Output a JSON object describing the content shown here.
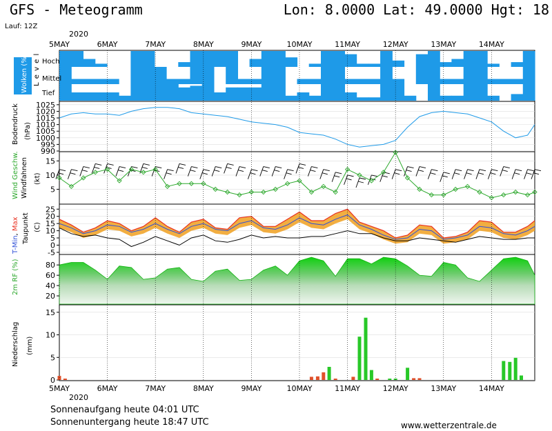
{
  "header": {
    "title": "GFS - Meteogramm",
    "coords": "Lon: 8.0000 Lat: 49.0000 Hgt: 18",
    "run": "Lauf: 12Z"
  },
  "footer": {
    "sunrise": "Sonnenaufgang heute 04:01 UTC",
    "sunset": "Sonnenuntergang heute 18:47 UTC",
    "source": "www.wetterzentrale.de"
  },
  "year": "2020",
  "days": [
    "5MAY",
    "6MAY",
    "7MAY",
    "8MAY",
    "9MAY",
    "10MAY",
    "11MAY",
    "12MAY",
    "13MAY",
    "14MAY"
  ],
  "colors": {
    "clouds": "#1e9ae8",
    "pressure": "#1e9ae8",
    "wind": "#2ca82c",
    "tmin": "#3050d8",
    "tmax": "#e83020",
    "dewpoint": "#000000",
    "humidity": "#3ec83e",
    "precip_rain": "#28c828",
    "precip_conv": "#e0502a"
  },
  "chart_data": [
    {
      "type": "heatmap",
      "id": "clouds",
      "ylabel": "Wolken (%)",
      "ylabel2": "L e v e l",
      "levels": [
        "Hoch",
        "Mittel",
        "Tief"
      ],
      "x_range": [
        0,
        9.9
      ],
      "cover": {
        "Hoch": [
          1,
          1,
          0.5,
          0.2,
          0,
          0,
          1,
          1,
          0,
          0,
          0.3,
          1,
          1,
          1,
          1,
          0,
          0.5,
          1,
          1,
          0.6,
          0,
          0.2,
          1,
          1,
          0.8,
          0.2,
          0.2,
          1,
          0.4,
          0,
          0.8,
          1,
          0.3,
          0.5,
          1,
          1,
          0.2,
          0,
          0.3,
          1
        ],
        "Mittel": [
          1,
          0.3,
          0.3,
          0.3,
          0.3,
          0,
          1,
          1,
          1,
          0.3,
          0.3,
          1,
          1,
          0,
          1,
          0.3,
          0.3,
          1,
          1,
          0,
          0.3,
          0.3,
          1,
          1,
          0.3,
          0.3,
          0.3,
          1,
          0.3,
          0,
          1,
          1,
          0.3,
          0.3,
          1,
          1,
          0.3,
          0.3,
          0.3,
          1
        ],
        "Tief": [
          1,
          0.5,
          0.5,
          0.5,
          0.5,
          0.3,
          1,
          1,
          1,
          1,
          0.8,
          0.9,
          1,
          0.5,
          0.8,
          0.8,
          0.8,
          1,
          1,
          0.3,
          0.5,
          0.3,
          1,
          1,
          0.5,
          0.2,
          0.2,
          1,
          1,
          0.3,
          0,
          1,
          0.3,
          0.3,
          1,
          1,
          0.3,
          0,
          0.4,
          1
        ]
      }
    },
    {
      "type": "line",
      "id": "pressure",
      "ylabel": "Bodendruck",
      "unit": "(hPa)",
      "ylim": [
        990,
        1027
      ],
      "yticks": [
        990,
        995,
        1000,
        1005,
        1010,
        1015,
        1020,
        1025
      ],
      "x": [
        0,
        0.25,
        0.5,
        0.75,
        1,
        1.25,
        1.5,
        1.75,
        2,
        2.25,
        2.5,
        2.75,
        3,
        3.25,
        3.5,
        3.75,
        4,
        4.25,
        4.5,
        4.75,
        5,
        5.25,
        5.5,
        5.75,
        6,
        6.25,
        6.5,
        6.75,
        7,
        7.25,
        7.5,
        7.75,
        8,
        8.25,
        8.5,
        8.75,
        9,
        9.25,
        9.5,
        9.75,
        9.9
      ],
      "values": [
        1015,
        1018,
        1019,
        1018,
        1018,
        1017,
        1020,
        1022,
        1023,
        1023,
        1022,
        1019,
        1018,
        1017,
        1016,
        1014,
        1012,
        1011,
        1010,
        1008,
        1004,
        1003,
        1002,
        999,
        995,
        993,
        994,
        995,
        998,
        1008,
        1016,
        1019,
        1020,
        1019,
        1018,
        1015,
        1012,
        1005,
        1000,
        1002,
        1010
      ],
      "series": [
        {
          "name": "Bodendruck"
        }
      ]
    },
    {
      "type": "line",
      "id": "wind",
      "ylabel": "Wind Geschw.",
      "ylabel2": "Windfahnen",
      "unit": "(kt)",
      "ylim": [
        0,
        18
      ],
      "yticks": [
        5,
        10,
        15
      ],
      "x": [
        0,
        0.25,
        0.5,
        0.75,
        1,
        1.25,
        1.5,
        1.75,
        2,
        2.25,
        2.5,
        2.75,
        3,
        3.25,
        3.5,
        3.75,
        4,
        4.25,
        4.5,
        4.75,
        5,
        5.25,
        5.5,
        5.75,
        6,
        6.25,
        6.5,
        6.75,
        7,
        7.25,
        7.5,
        7.75,
        8,
        8.25,
        8.5,
        8.75,
        9,
        9.25,
        9.5,
        9.75,
        9.9
      ],
      "values": [
        9,
        6,
        9,
        11,
        12,
        8,
        12,
        11,
        12,
        6,
        7,
        7,
        7,
        5,
        4,
        3,
        4,
        4,
        5,
        7,
        8,
        4,
        6,
        4,
        12,
        10,
        8,
        11,
        18,
        9,
        5,
        3,
        3,
        5,
        6,
        4,
        2,
        3,
        4,
        3,
        4
      ],
      "barbs": [
        12,
        12,
        13,
        14,
        14,
        13,
        13,
        14,
        13,
        12,
        14,
        13,
        12,
        13,
        14,
        13,
        12,
        13,
        13,
        12,
        14,
        13,
        12,
        11,
        10,
        9,
        10,
        11,
        12,
        13,
        13,
        12,
        11,
        12,
        12,
        12,
        12,
        13,
        12,
        12,
        12
      ],
      "series": [
        {
          "name": "Wind Geschw."
        },
        {
          "name": "Windfahnen"
        }
      ]
    },
    {
      "type": "area",
      "id": "temperature",
      "ylabel": "T-Min, Max",
      "ylabel2": "Taupunkt",
      "unit": "(C)",
      "ylim": [
        -6,
        28
      ],
      "yticks": [
        -5,
        0,
        5,
        10,
        15,
        20,
        25
      ],
      "x": [
        0,
        0.25,
        0.5,
        0.75,
        1,
        1.25,
        1.5,
        1.75,
        2,
        2.25,
        2.5,
        2.75,
        3,
        3.25,
        3.5,
        3.75,
        4,
        4.25,
        4.5,
        4.75,
        5,
        5.25,
        5.5,
        5.75,
        6,
        6.25,
        6.5,
        6.75,
        7,
        7.25,
        7.5,
        7.75,
        8,
        8.25,
        8.5,
        8.75,
        9,
        9.25,
        9.5,
        9.75,
        9.9
      ],
      "tmax": [
        18,
        14,
        9,
        12,
        17,
        15,
        10,
        13,
        19,
        13,
        9,
        16,
        18,
        12,
        11,
        19,
        20,
        13,
        13,
        18,
        23,
        17,
        17,
        22,
        25,
        16,
        13,
        10,
        5,
        7,
        14,
        13,
        5,
        6,
        9,
        17,
        16,
        9,
        9,
        13,
        17
      ],
      "tmin": [
        15,
        12,
        8,
        10,
        14,
        13,
        9,
        11,
        15,
        11,
        8,
        13,
        15,
        11,
        10,
        15,
        17,
        12,
        11,
        14,
        19,
        15,
        14,
        18,
        21,
        14,
        11,
        7,
        4,
        5,
        11,
        10,
        4,
        5,
        7,
        13,
        12,
        8,
        7,
        10,
        13
      ],
      "dewpoint": [
        12,
        8,
        6,
        7,
        5,
        4,
        -1,
        2,
        6,
        3,
        0,
        5,
        7,
        3,
        2,
        4,
        7,
        5,
        6,
        5,
        5,
        6,
        6,
        8,
        10,
        8,
        8,
        5,
        3,
        3,
        5,
        4,
        3,
        2,
        4,
        6,
        5,
        4,
        4,
        5,
        5
      ],
      "series": [
        {
          "name": "T-Min"
        },
        {
          "name": "Max"
        },
        {
          "name": "Taupunkt"
        }
      ]
    },
    {
      "type": "area",
      "id": "humidity",
      "ylabel": "2m RF (%)",
      "ylim": [
        4,
        99
      ],
      "yticks": [
        20,
        40,
        60,
        80
      ],
      "x": [
        0,
        0.25,
        0.5,
        0.75,
        1,
        1.25,
        1.5,
        1.75,
        2,
        2.25,
        2.5,
        2.75,
        3,
        3.25,
        3.5,
        3.75,
        4,
        4.25,
        4.5,
        4.75,
        5,
        5.25,
        5.5,
        5.75,
        6,
        6.25,
        6.5,
        6.75,
        7,
        7.25,
        7.5,
        7.75,
        8,
        8.25,
        8.5,
        8.75,
        9,
        9.25,
        9.5,
        9.75,
        9.9
      ],
      "values": [
        80,
        85,
        85,
        70,
        52,
        78,
        75,
        52,
        55,
        72,
        75,
        52,
        48,
        68,
        72,
        50,
        52,
        70,
        78,
        60,
        88,
        95,
        88,
        58,
        92,
        92,
        82,
        95,
        92,
        78,
        60,
        58,
        85,
        80,
        55,
        48,
        70,
        92,
        95,
        88,
        60
      ],
      "series": [
        {
          "name": "2m RF"
        }
      ]
    },
    {
      "type": "bar",
      "id": "precipitation",
      "ylabel": "Niederschlag",
      "unit": "(mm)",
      "ylim": [
        0,
        16.5
      ],
      "yticks": [
        0,
        5,
        10,
        15
      ],
      "bars": [
        {
          "x": 0.0,
          "value": 0.9,
          "kind": "conv"
        },
        {
          "x": 0.12,
          "value": 0.3,
          "kind": "conv"
        },
        {
          "x": 5.25,
          "value": 0.7,
          "kind": "conv"
        },
        {
          "x": 5.38,
          "value": 0.8,
          "kind": "conv"
        },
        {
          "x": 5.5,
          "value": 1.7,
          "kind": "conv"
        },
        {
          "x": 5.62,
          "value": 2.9,
          "kind": "rain"
        },
        {
          "x": 5.75,
          "value": 0.3,
          "kind": "conv"
        },
        {
          "x": 6.12,
          "value": 0.7,
          "kind": "conv"
        },
        {
          "x": 6.25,
          "value": 9.6,
          "kind": "rain"
        },
        {
          "x": 6.38,
          "value": 13.8,
          "kind": "rain"
        },
        {
          "x": 6.5,
          "value": 2.2,
          "kind": "rain"
        },
        {
          "x": 6.62,
          "value": 0.3,
          "kind": "conv"
        },
        {
          "x": 6.88,
          "value": 0.3,
          "kind": "rain"
        },
        {
          "x": 7.0,
          "value": 0.3,
          "kind": "rain"
        },
        {
          "x": 7.25,
          "value": 2.7,
          "kind": "rain"
        },
        {
          "x": 7.38,
          "value": 0.4,
          "kind": "conv"
        },
        {
          "x": 7.5,
          "value": 0.4,
          "kind": "conv"
        },
        {
          "x": 9.25,
          "value": 4.2,
          "kind": "rain"
        },
        {
          "x": 9.38,
          "value": 4.0,
          "kind": "rain"
        },
        {
          "x": 9.5,
          "value": 4.9,
          "kind": "rain"
        },
        {
          "x": 9.62,
          "value": 1.0,
          "kind": "rain"
        }
      ],
      "series": [
        {
          "name": "Niederschlag"
        }
      ]
    }
  ]
}
